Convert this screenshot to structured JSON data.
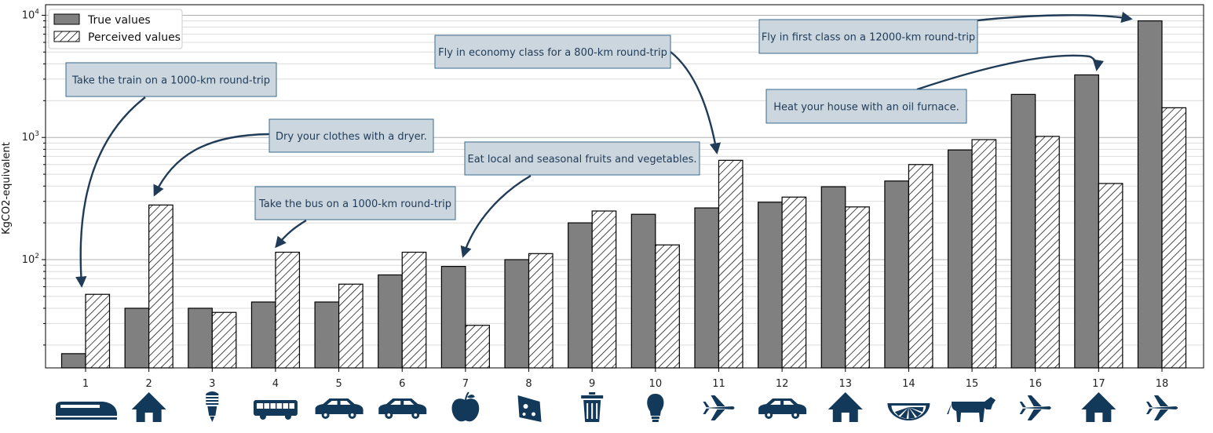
{
  "chart_data": {
    "type": "bar",
    "y_scale": "log",
    "ylabel": "KgCO2-equivalent",
    "ylim": [
      13,
      12200
    ],
    "y_major_ticks": [
      {
        "value": 100,
        "base": "10",
        "exp": "2"
      },
      {
        "value": 1000,
        "base": "10",
        "exp": "3"
      },
      {
        "value": 10000,
        "base": "10",
        "exp": "4"
      }
    ],
    "grid": "y major and minor",
    "legend_position": "top-left",
    "categories": [
      "1",
      "2",
      "3",
      "4",
      "5",
      "6",
      "7",
      "8",
      "9",
      "10",
      "11",
      "12",
      "13",
      "14",
      "15",
      "16",
      "17",
      "18"
    ],
    "series": [
      {
        "name": "True values",
        "style": "solid",
        "color": "#808080",
        "values": [
          17,
          40,
          40,
          45,
          45,
          75,
          88,
          100,
          200,
          235,
          265,
          295,
          395,
          440,
          790,
          2250,
          3250,
          9000
        ]
      },
      {
        "name": "Perceived values",
        "style": "hatched",
        "color": "#ffffff",
        "values": [
          52,
          280,
          37,
          115,
          63,
          115,
          29,
          112,
          250,
          132,
          650,
          325,
          270,
          600,
          960,
          1020,
          420,
          1750
        ]
      }
    ],
    "icons": [
      "train-icon",
      "house-icon",
      "lightbulb-cfl-icon",
      "bus-icon",
      "car-icon",
      "car-icon",
      "apple-icon",
      "cheese-icon",
      "trash-can-icon",
      "lightbulb-icon",
      "airplane-icon",
      "car-icon",
      "house-icon",
      "citrus-icon",
      "cow-icon",
      "airplane-icon",
      "house-icon",
      "airplane-icon"
    ],
    "annotations": [
      {
        "text": "Take the train on a 1000-km round-trip",
        "target_category": "1"
      },
      {
        "text": "Dry your clothes with a dryer.",
        "target_category": "2"
      },
      {
        "text": "Take the bus on a 1000-km round-trip",
        "target_category": "4"
      },
      {
        "text": "Eat local and seasonal fruits and vegetables.",
        "target_category": "7"
      },
      {
        "text": "Fly in economy class for a 800-km round-trip",
        "target_category": "11"
      },
      {
        "text": "Heat your house with an oil furnace.",
        "target_category": "17"
      },
      {
        "text": "Fly in first class on a 12000-km round-trip",
        "target_category": "18"
      }
    ],
    "colors": {
      "annotation_fill": "#cbd6df",
      "annotation_border": "#3a6b8c",
      "arrow": "#1f3b57",
      "icon": "#13395a"
    }
  }
}
